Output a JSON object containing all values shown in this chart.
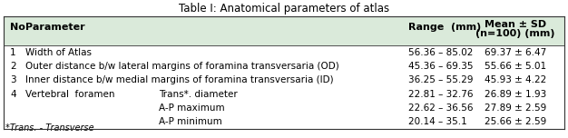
{
  "title": "Table I: Anatomical parameters of atlas",
  "header_bg": "#daeada",
  "table_bg": "#ffffff",
  "border_color": "#333333",
  "title_fontsize": 8.5,
  "header_fontsize": 8,
  "body_fontsize": 7.5,
  "footnote": "*Trans. - Transverse",
  "footnote_fontsize": 7,
  "rows": [
    {
      "no": "1",
      "param": "Width of Atlas",
      "param2": "",
      "range": "56.36 – 85.02",
      "mean": "69.37 ± 6.47"
    },
    {
      "no": "2",
      "param": "Outer distance b/w lateral margins of foramina transversaria (OD)",
      "param2": "",
      "range": "45.36 – 69.35",
      "mean": "55.66 ± 5.01"
    },
    {
      "no": "3",
      "param": "Inner distance b/w medial margins of foramina transversaria (ID)",
      "param2": "",
      "range": "36.25 – 55.29",
      "mean": "45.93 ± 4.22"
    },
    {
      "no": "4",
      "param": "Vertebral  foramen",
      "param2": "Trans*. diameter",
      "range": "22.81 – 32.76",
      "mean": "26.89 ± 1.93"
    },
    {
      "no": "",
      "param": "",
      "param2": "A-P maximum",
      "range": "22.62 – 36.56",
      "mean": "27.89 ± 2.59"
    },
    {
      "no": "",
      "param": "",
      "param2": "A-P minimum",
      "range": "20.14 – 35.1",
      "mean": "25.66 ± 2.59"
    }
  ]
}
